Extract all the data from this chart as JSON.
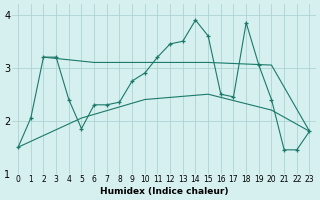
{
  "xlabel": "Humidex (Indice chaleur)",
  "bg_color": "#d6efef",
  "grid_color": "#aed4d4",
  "line_color": "#1a7a6a",
  "xlim": [
    -0.5,
    23.5
  ],
  "ylim": [
    1.0,
    4.2
  ],
  "yticks": [
    1,
    2,
    3,
    4
  ],
  "xticks": [
    0,
    1,
    2,
    3,
    4,
    5,
    6,
    7,
    8,
    9,
    10,
    11,
    12,
    13,
    14,
    15,
    16,
    17,
    18,
    19,
    20,
    21,
    22,
    23
  ],
  "series1_x": [
    0,
    1,
    2,
    3,
    4,
    5,
    6,
    7,
    8,
    9,
    10,
    11,
    12,
    13,
    14,
    15,
    16,
    17,
    18,
    19,
    20,
    21,
    22,
    23
  ],
  "series1_y": [
    1.5,
    2.05,
    3.2,
    3.2,
    2.4,
    1.85,
    2.3,
    2.3,
    2.35,
    2.75,
    2.9,
    3.2,
    3.45,
    3.5,
    3.9,
    3.6,
    2.5,
    2.45,
    3.85,
    3.05,
    2.4,
    1.45,
    1.45,
    1.8
  ],
  "series2_x": [
    2,
    6,
    10,
    14,
    15,
    20,
    23
  ],
  "series2_y": [
    3.2,
    3.1,
    3.1,
    3.1,
    3.1,
    3.05,
    1.8
  ],
  "series3_x": [
    0,
    5,
    10,
    15,
    20,
    23
  ],
  "series3_y": [
    1.5,
    2.05,
    2.4,
    2.5,
    2.2,
    1.8
  ]
}
